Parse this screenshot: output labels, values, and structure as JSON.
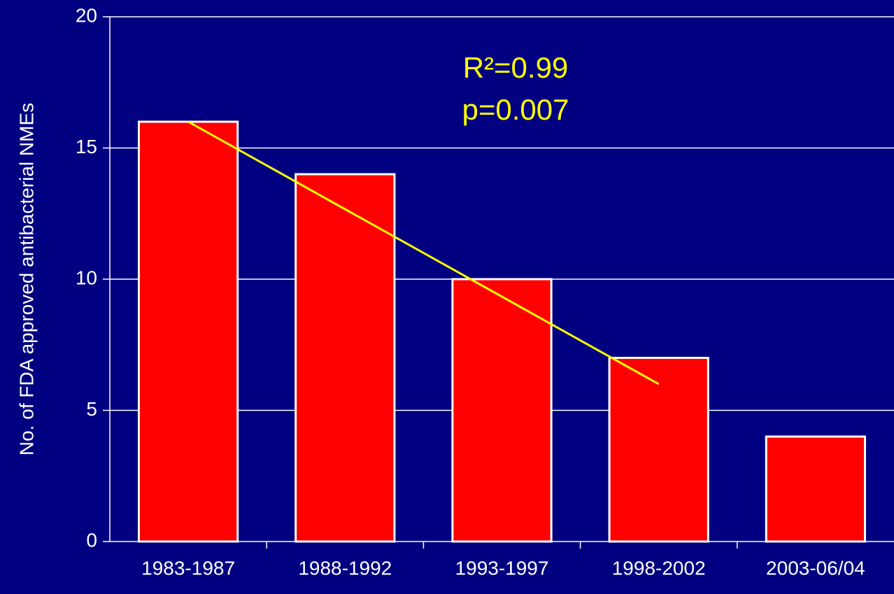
{
  "chart_data": {
    "type": "bar",
    "ylabel": "No. of FDA approved antibacterial NMEs",
    "categories": [
      "1983-1987",
      "1988-1992",
      "1993-1997",
      "1998-2002",
      "2003-06/04"
    ],
    "values": [
      16,
      14,
      10,
      7,
      4
    ],
    "color": "#ff0000",
    "ylim": [
      0,
      20
    ],
    "yticks": [
      0,
      5,
      10,
      15,
      20
    ],
    "grid": true,
    "trendline": {
      "color": "#ffff00",
      "categories": [
        0,
        3
      ],
      "values": [
        16,
        6
      ]
    },
    "annotations": [
      "R²=0.99",
      "p=0.007"
    ]
  }
}
